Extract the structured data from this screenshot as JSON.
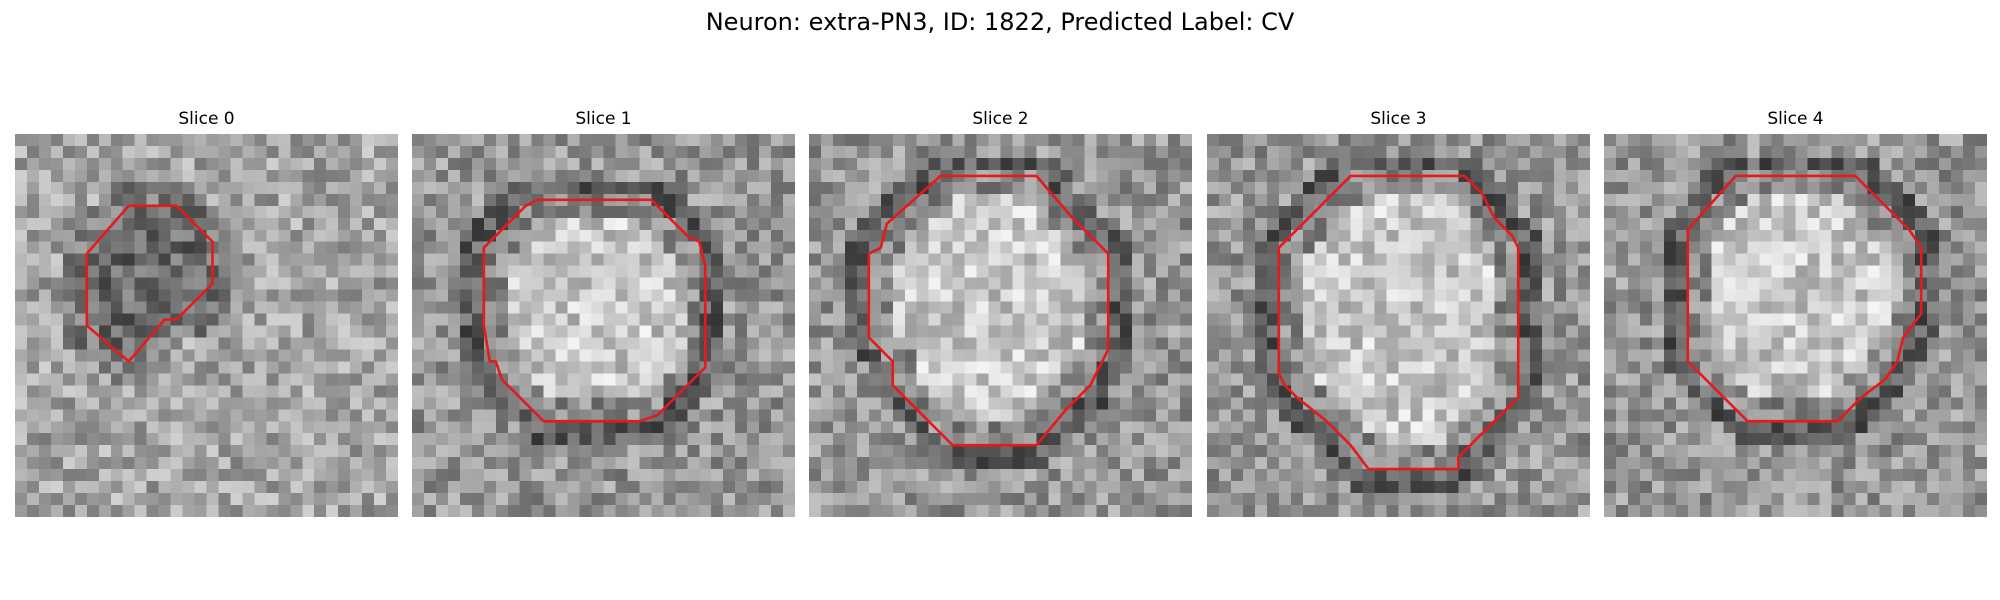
{
  "figure": {
    "title": "Neuron: extra-PN3, ID: 1822, Predicted Label: CV"
  },
  "panels": [
    {
      "title": "Slice 0",
      "grid_size": 32,
      "seed": 11,
      "dark_center": true,
      "contour": {
        "color": "#e41a1c",
        "points": [
          [
            9.5,
            6.0
          ],
          [
            13.5,
            6.0
          ],
          [
            16.5,
            9.0
          ],
          [
            16.5,
            12.5
          ],
          [
            13.5,
            15.5
          ],
          [
            12.5,
            15.5
          ],
          [
            9.5,
            19.0
          ],
          [
            6.0,
            16.0
          ],
          [
            6.0,
            10.0
          ]
        ]
      }
    },
    {
      "title": "Slice 1",
      "grid_size": 32,
      "seed": 23,
      "dark_center": false,
      "contour": {
        "color": "#e41a1c",
        "points": [
          [
            10.5,
            5.5
          ],
          [
            20.0,
            5.5
          ],
          [
            23.0,
            8.5
          ],
          [
            24.0,
            9.0
          ],
          [
            24.5,
            11.0
          ],
          [
            24.5,
            19.5
          ],
          [
            21.5,
            22.5
          ],
          [
            20.5,
            23.5
          ],
          [
            19.0,
            24.0
          ],
          [
            11.0,
            24.0
          ],
          [
            7.5,
            20.5
          ],
          [
            7.0,
            19.0
          ],
          [
            6.5,
            19.0
          ],
          [
            6.0,
            16.0
          ],
          [
            6.0,
            9.5
          ],
          [
            9.5,
            6.0
          ]
        ]
      }
    },
    {
      "title": "Slice 2",
      "grid_size": 32,
      "seed": 37,
      "dark_center": false,
      "contour": {
        "color": "#e41a1c",
        "points": [
          [
            11.0,
            3.5
          ],
          [
            19.0,
            3.5
          ],
          [
            22.0,
            7.0
          ],
          [
            25.0,
            10.0
          ],
          [
            25.0,
            18.0
          ],
          [
            23.5,
            21.0
          ],
          [
            21.5,
            23.0
          ],
          [
            19.0,
            26.0
          ],
          [
            12.0,
            26.0
          ],
          [
            9.5,
            23.5
          ],
          [
            7.0,
            21.0
          ],
          [
            7.0,
            19.0
          ],
          [
            6.0,
            18.0
          ],
          [
            5.0,
            17.0
          ],
          [
            5.0,
            10.0
          ],
          [
            6.0,
            9.5
          ],
          [
            6.5,
            7.5
          ]
        ]
      }
    },
    {
      "title": "Slice 3",
      "grid_size": 32,
      "seed": 53,
      "dark_center": false,
      "contour": {
        "color": "#e41a1c",
        "points": [
          [
            12.0,
            3.5
          ],
          [
            21.5,
            3.5
          ],
          [
            23.0,
            5.0
          ],
          [
            24.0,
            7.0
          ],
          [
            25.5,
            8.5
          ],
          [
            26.0,
            9.5
          ],
          [
            26.0,
            22.0
          ],
          [
            22.5,
            25.5
          ],
          [
            21.0,
            27.0
          ],
          [
            21.0,
            28.0
          ],
          [
            13.5,
            28.0
          ],
          [
            12.0,
            26.0
          ],
          [
            10.0,
            24.0
          ],
          [
            7.5,
            22.0
          ],
          [
            6.5,
            21.0
          ],
          [
            6.0,
            20.0
          ],
          [
            6.0,
            9.5
          ],
          [
            8.5,
            7.0
          ]
        ]
      }
    },
    {
      "title": "Slice 4",
      "grid_size": 32,
      "seed": 71,
      "dark_center": false,
      "contour": {
        "color": "#e41a1c",
        "points": [
          [
            11.0,
            3.5
          ],
          [
            21.0,
            3.5
          ],
          [
            24.0,
            6.5
          ],
          [
            25.5,
            8.0
          ],
          [
            26.5,
            9.5
          ],
          [
            26.5,
            15.0
          ],
          [
            25.0,
            17.0
          ],
          [
            24.5,
            19.0
          ],
          [
            23.5,
            20.5
          ],
          [
            21.5,
            22.0
          ],
          [
            20.0,
            23.5
          ],
          [
            19.5,
            24.0
          ],
          [
            12.0,
            24.0
          ],
          [
            9.5,
            21.5
          ],
          [
            7.0,
            19.0
          ],
          [
            7.0,
            8.0
          ]
        ]
      }
    }
  ]
}
